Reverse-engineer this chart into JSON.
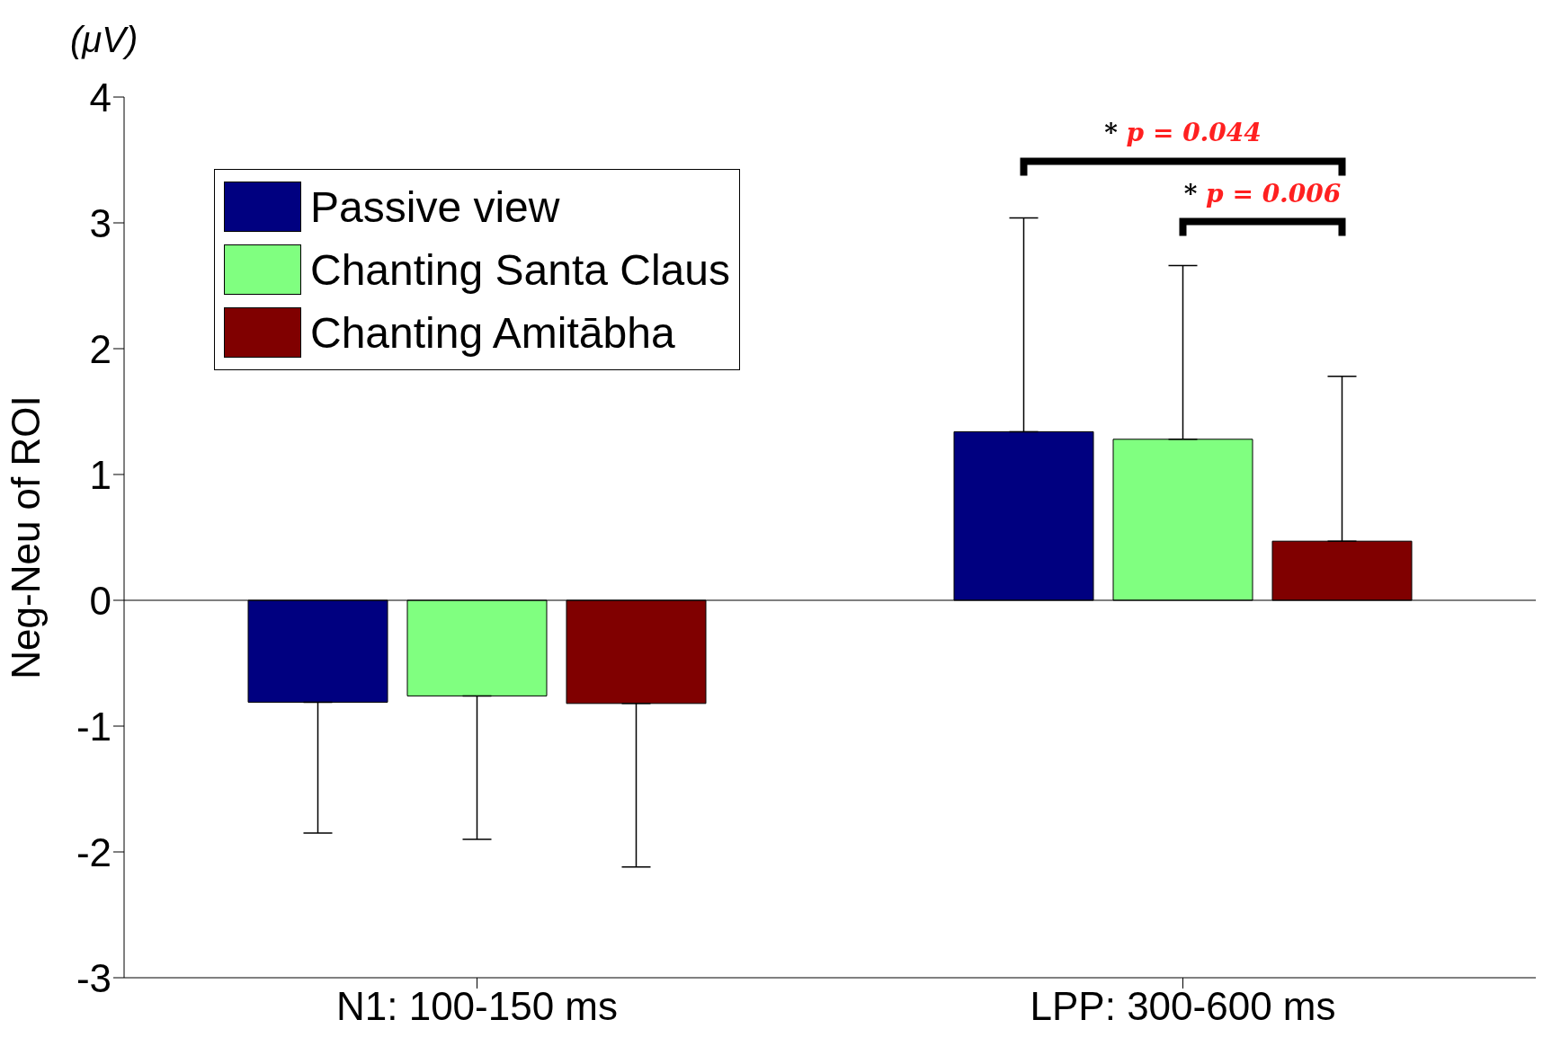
{
  "chart_data": {
    "type": "bar",
    "ylabel": "Neg-Neu of ROI",
    "categories": [
      "N1: 100-150 ms",
      "LPP: 300-600 ms"
    ],
    "series": [
      {
        "name": "Passive view",
        "color": "#000080",
        "values": [
          -0.81,
          1.34
        ],
        "errors": [
          [
            -1.85,
            -0.81
          ],
          [
            1.34,
            3.04
          ]
        ]
      },
      {
        "name": "Chanting Santa Claus",
        "color": "#80ff80",
        "values": [
          -0.76,
          1.28
        ],
        "errors": [
          [
            -1.9,
            -0.76
          ],
          [
            1.28,
            2.66
          ]
        ]
      },
      {
        "name": "Chanting Amitābha",
        "color": "#800000",
        "values": [
          -0.82,
          0.47
        ],
        "errors": [
          [
            -2.12,
            -0.82
          ],
          [
            0.47,
            1.78
          ]
        ]
      }
    ],
    "ylim": [
      -3,
      4
    ],
    "yticks": [
      -3,
      -2,
      -1,
      0,
      1,
      2,
      3,
      4
    ],
    "grid": false,
    "legend": "top left",
    "ref_lines": [
      {
        "axis": "y",
        "value": 0,
        "color": "#000000"
      }
    ],
    "annotations": [
      "(μV)",
      "* p = 0.044",
      "* p = 0.006"
    ]
  }
}
